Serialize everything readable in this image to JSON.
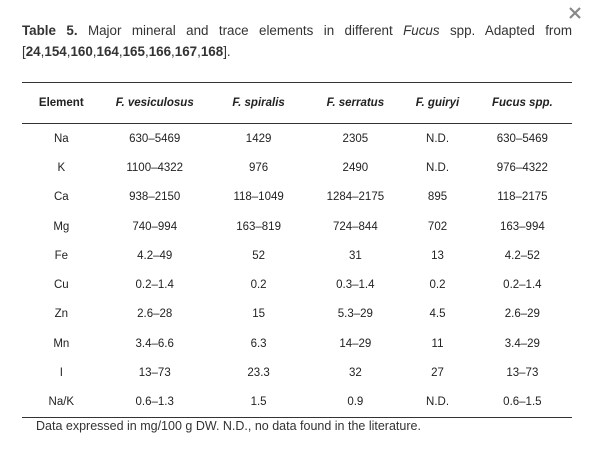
{
  "caption": [
    {
      "text": "Table 5.",
      "style": "b"
    },
    {
      "text": " Major mineral and trace elements in different ",
      "style": ""
    },
    {
      "text": "Fucus",
      "style": "i"
    },
    {
      "text": " spp. Adapted from [",
      "style": ""
    },
    {
      "text": "24",
      "style": "b"
    },
    {
      "text": ",",
      "style": ""
    },
    {
      "text": "154",
      "style": "b"
    },
    {
      "text": ",",
      "style": ""
    },
    {
      "text": "160",
      "style": "b"
    },
    {
      "text": ",",
      "style": ""
    },
    {
      "text": "164",
      "style": "b"
    },
    {
      "text": ",",
      "style": ""
    },
    {
      "text": "165",
      "style": "b"
    },
    {
      "text": ",",
      "style": ""
    },
    {
      "text": "166",
      "style": "b"
    },
    {
      "text": ",",
      "style": ""
    },
    {
      "text": "167",
      "style": "b"
    },
    {
      "text": ",",
      "style": ""
    },
    {
      "text": "168",
      "style": "b"
    },
    {
      "text": "].",
      "style": ""
    }
  ],
  "table": {
    "header": [
      "Element",
      "F. vesiculosus",
      "F. spiralis",
      "F. serratus",
      "F. guiryi",
      "Fucus spp."
    ],
    "rows": [
      [
        "Na",
        "630–5469",
        "1429",
        "2305",
        "N.D.",
        "630–5469"
      ],
      [
        "K",
        "1100–4322",
        "976",
        "2490",
        "N.D.",
        "976–4322"
      ],
      [
        "Ca",
        "938–2150",
        "118–1049",
        "1284–2175",
        "895",
        "118–2175"
      ],
      [
        "Mg",
        "740–994",
        "163–819",
        "724–844",
        "702",
        "163–994"
      ],
      [
        "Fe",
        "4.2–49",
        "52",
        "31",
        "13",
        "4.2–52"
      ],
      [
        "Cu",
        "0.2–1.4",
        "0.2",
        "0.3–1.4",
        "0.2",
        "0.2–1.4"
      ],
      [
        "Zn",
        "2.6–28",
        "15",
        "5.3–29",
        "4.5",
        "2.6–29"
      ],
      [
        "Mn",
        "3.4–6.6",
        "6.3",
        "14–29",
        "11",
        "3.4–29"
      ],
      [
        "I",
        "13–73",
        "23.3",
        "32",
        "27",
        "13–73"
      ],
      [
        "Na/K",
        "0.6–1.3",
        "1.5",
        "0.9",
        "N.D.",
        "0.6–1.5"
      ]
    ]
  },
  "footnote": "Data expressed in mg/100 g DW. N.D., no data found in the literature."
}
